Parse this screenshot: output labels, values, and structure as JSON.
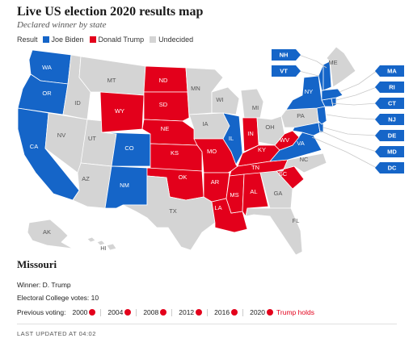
{
  "header": {
    "title": "Live US election 2020 results map",
    "subtitle": "Declared winner by state"
  },
  "legend": {
    "label": "Result",
    "items": [
      {
        "name": "Joe Biden",
        "color": "#1565c8"
      },
      {
        "name": "Donald Trump",
        "color": "#e3001b"
      },
      {
        "name": "Undecided",
        "color": "#d4d4d4"
      }
    ]
  },
  "colors": {
    "biden": "#1565c8",
    "trump": "#e3001b",
    "undecided": "#d4d4d4"
  },
  "map": {
    "states": {
      "WA": "biden",
      "OR": "biden",
      "CA": "biden",
      "ID": "undecided",
      "NV": "undecided",
      "UT": "undecided",
      "AZ": "undecided",
      "MT": "undecided",
      "WY": "trump",
      "CO": "biden",
      "NM": "biden",
      "ND": "trump",
      "SD": "trump",
      "NE": "trump",
      "KS": "trump",
      "OK": "trump",
      "TX": "undecided",
      "MN": "undecided",
      "IA": "undecided",
      "MO": "trump",
      "AR": "trump",
      "LA": "trump",
      "WI": "undecided",
      "IL": "biden",
      "MI": "undecided",
      "IN": "trump",
      "OH": "undecided",
      "KY": "trump",
      "TN": "trump",
      "MS": "trump",
      "AL": "trump",
      "GA": "undecided",
      "FL": "undecided",
      "SC": "trump",
      "NC": "undecided",
      "VA": "biden",
      "WV": "trump",
      "PA": "undecided",
      "NY": "biden",
      "VT": "biden",
      "NH": "biden",
      "ME": "undecided",
      "MA": "biden",
      "RI": "biden",
      "CT": "biden",
      "NJ": "biden",
      "DE": "biden",
      "MD": "biden",
      "DC": "biden",
      "AK": "undecided",
      "HI": "undecided"
    },
    "boxes_left": [
      "NH",
      "VT"
    ],
    "boxes_right": [
      "MA",
      "RI",
      "CT",
      "NJ",
      "DE",
      "MD",
      "DC"
    ]
  },
  "detail": {
    "state_name": "Missouri",
    "winner_label": "Winner:",
    "winner_value": "D. Trump",
    "ec_label": "Electoral College votes:",
    "ec_value": "10",
    "previous_label": "Previous voting:",
    "previous": [
      {
        "year": "2000",
        "party": "trump"
      },
      {
        "year": "2004",
        "party": "trump"
      },
      {
        "year": "2008",
        "party": "trump"
      },
      {
        "year": "2012",
        "party": "trump"
      },
      {
        "year": "2016",
        "party": "trump"
      },
      {
        "year": "2020",
        "party": "trump"
      }
    ],
    "holds_text": "Trump holds"
  },
  "footer": {
    "updated": "LAST UPDATED AT 04:02"
  }
}
